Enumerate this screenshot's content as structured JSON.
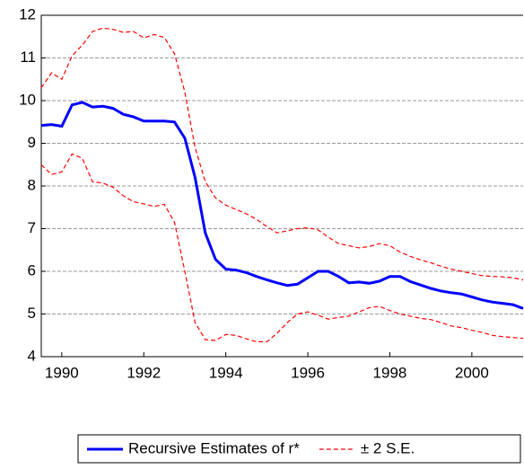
{
  "chart_data": {
    "type": "line",
    "x": [
      1989.5,
      1989.75,
      1990,
      1990.25,
      1990.5,
      1990.75,
      1991,
      1991.25,
      1991.5,
      1991.75,
      1992,
      1992.25,
      1992.5,
      1992.75,
      1993,
      1993.25,
      1993.5,
      1993.75,
      1994,
      1994.25,
      1994.5,
      1994.75,
      1995,
      1995.25,
      1995.5,
      1995.75,
      1996,
      1996.25,
      1996.5,
      1996.75,
      1997,
      1997.25,
      1997.5,
      1997.75,
      1998,
      1998.25,
      1998.5,
      1998.75,
      1999,
      1999.25,
      1999.5,
      1999.75,
      2000,
      2000.25,
      2000.5,
      2000.75,
      2001,
      2001.25
    ],
    "series": [
      {
        "name": "Recursive Estimates of r*",
        "color": "#0000ff",
        "dash": false,
        "values": [
          9.42,
          9.44,
          9.4,
          9.9,
          9.96,
          9.85,
          9.87,
          9.82,
          9.68,
          9.62,
          9.52,
          9.52,
          9.52,
          9.5,
          9.12,
          8.2,
          6.9,
          6.28,
          6.05,
          6.03,
          5.97,
          5.88,
          5.8,
          5.73,
          5.67,
          5.7,
          5.85,
          6.0,
          6.0,
          5.88,
          5.73,
          5.75,
          5.72,
          5.77,
          5.88,
          5.88,
          5.76,
          5.68,
          5.6,
          5.54,
          5.5,
          5.47,
          5.4,
          5.33,
          5.28,
          5.25,
          5.22,
          5.13
        ]
      },
      {
        "name": "± 2 S.E.",
        "color": "#ff0000",
        "dash": true,
        "values": [
          10.3,
          10.65,
          10.5,
          11.05,
          11.3,
          11.62,
          11.7,
          11.67,
          11.6,
          11.62,
          11.47,
          11.55,
          11.48,
          11.1,
          10.2,
          8.9,
          8.1,
          7.72,
          7.55,
          7.45,
          7.35,
          7.22,
          7.05,
          6.9,
          6.95,
          7.0,
          7.02,
          6.97,
          6.8,
          6.65,
          6.6,
          6.55,
          6.58,
          6.65,
          6.6,
          6.45,
          6.35,
          6.27,
          6.2,
          6.12,
          6.05,
          6.0,
          5.95,
          5.9,
          5.88,
          5.87,
          5.85,
          5.8
        ]
      },
      {
        "color": "#ff0000",
        "dash": true,
        "values": [
          8.5,
          8.27,
          8.33,
          8.75,
          8.65,
          8.1,
          8.07,
          7.97,
          7.77,
          7.63,
          7.58,
          7.52,
          7.57,
          7.15,
          6.0,
          4.8,
          4.4,
          4.38,
          4.52,
          4.5,
          4.42,
          4.35,
          4.35,
          4.55,
          4.8,
          5.0,
          5.05,
          4.97,
          4.88,
          4.92,
          4.95,
          5.05,
          5.15,
          5.18,
          5.08,
          5.0,
          4.95,
          4.9,
          4.87,
          4.8,
          4.72,
          4.68,
          4.62,
          4.57,
          4.5,
          4.47,
          4.45,
          4.43
        ]
      }
    ],
    "xlim": [
      1989.5,
      2001.25
    ],
    "xticks": [
      1990,
      1992,
      1994,
      1996,
      1998,
      2000
    ],
    "ylim": [
      4,
      12
    ],
    "yticks": [
      4,
      5,
      6,
      7,
      8,
      9,
      10,
      11,
      12
    ],
    "grid": true
  }
}
